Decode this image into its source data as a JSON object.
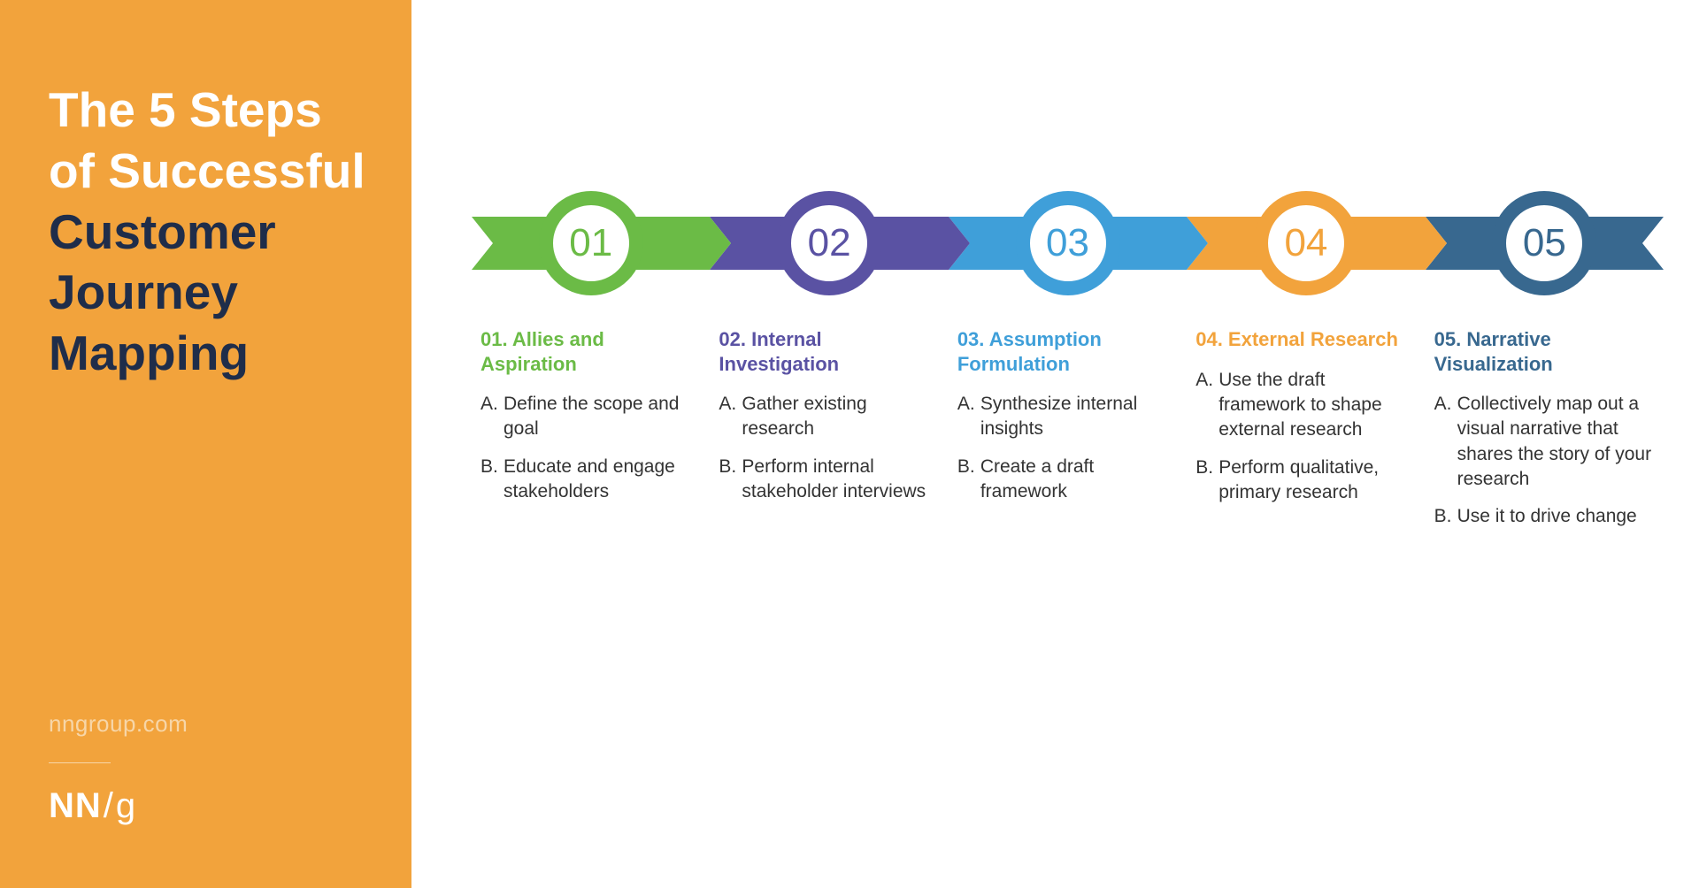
{
  "background_color": "#ffffff",
  "left_panel": {
    "bg_color": "#f2a33c",
    "title_white": [
      "The 5 Steps",
      "of Successful"
    ],
    "title_dark": [
      "Customer",
      "Journey",
      "Mapping"
    ],
    "title_white_color": "#ffffff",
    "title_dark_color": "#1f2d4a",
    "title_fontsize": 55,
    "url": "nngroup.com",
    "url_color": "#f7d6a8",
    "logo_nn": "NN",
    "logo_slash": "/",
    "logo_g": "g"
  },
  "flow": {
    "arrow_height": 60,
    "arrowhead_width": 24,
    "circle_diameter": 118,
    "circle_border_width": 16,
    "circle_bg": "#ffffff",
    "number_fontsize": 44,
    "step_title_fontsize": 22,
    "step_body_fontsize": 21,
    "body_text_color": "#333333",
    "steps": [
      {
        "num": "01",
        "color": "#6bbb46",
        "number_color": "#6bbb46",
        "title": "01. Allies and Aspiration",
        "items": [
          "Define the scope and goal",
          "Educate and engage stakeholders"
        ]
      },
      {
        "num": "02",
        "color": "#5a52a3",
        "number_color": "#5a52a3",
        "title": "02. Internal Investigation",
        "items": [
          "Gather existing research",
          "Perform internal stakeholder interviews"
        ]
      },
      {
        "num": "03",
        "color": "#3f9fd9",
        "number_color": "#3f9fd9",
        "title": "03. Assumption Formulation",
        "items": [
          "Synthesize internal insights",
          "Create a draft framework"
        ]
      },
      {
        "num": "04",
        "color": "#f2a33c",
        "number_color": "#f2a33c",
        "title": "04. External Research",
        "items": [
          "Use the draft framework to shape external research",
          "Perform qualitative, primary research"
        ]
      },
      {
        "num": "05",
        "color": "#38688f",
        "number_color": "#38688f",
        "title": "05. Narrative Visualization",
        "items": [
          "Collectively map out a visual narrative that shares the story of your research",
          "Use it to drive change"
        ]
      }
    ]
  }
}
